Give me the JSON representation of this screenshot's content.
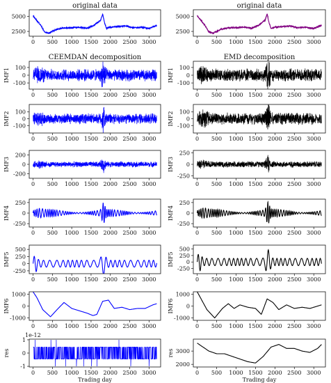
{
  "chart_data": [
    {
      "type": "line",
      "panel": "orig-left",
      "title": "original data",
      "ylabel": "",
      "xlim": [
        -100,
        3300
      ],
      "ylim": [
        1700,
        6100
      ],
      "yticks": [
        2500,
        5000
      ],
      "color": "#0000ff",
      "signal": {
        "kind": "price",
        "amp": 1
      },
      "x": [
        0,
        100,
        200,
        300,
        400,
        600,
        800,
        1000,
        1200,
        1400,
        1600,
        1750,
        1800,
        1850,
        1900,
        2000,
        2200,
        2400,
        2600,
        2800,
        3000,
        3200
      ],
      "y": [
        5100,
        4300,
        3500,
        2400,
        2200,
        2800,
        3100,
        3100,
        3200,
        3000,
        3600,
        4400,
        5400,
        3900,
        3000,
        3200,
        3300,
        3400,
        3100,
        3200,
        3000,
        3500
      ]
    },
    {
      "type": "line",
      "panel": "orig-right",
      "title": "original data",
      "ylabel": "",
      "xlim": [
        -100,
        3300
      ],
      "ylim": [
        1700,
        6100
      ],
      "yticks": [
        2500,
        5000
      ],
      "color": "#800080",
      "signal": {
        "kind": "price",
        "amp": 1
      },
      "x": [
        0,
        100,
        200,
        300,
        400,
        600,
        800,
        1000,
        1200,
        1400,
        1600,
        1750,
        1800,
        1850,
        1900,
        2000,
        2200,
        2400,
        2600,
        2800,
        3000,
        3200
      ],
      "y": [
        5100,
        4300,
        3500,
        2400,
        2200,
        2800,
        3100,
        3100,
        3200,
        3000,
        3600,
        4400,
        5400,
        3900,
        3000,
        3200,
        3300,
        3400,
        3100,
        3200,
        3000,
        3500
      ]
    },
    {
      "type": "line",
      "panel": "imf1-left",
      "title": "CEEMDAN decomposition",
      "ylabel": "IMF1",
      "ylim": [
        -180,
        180
      ],
      "yticks": [
        -100,
        0,
        100
      ],
      "color": "#0000ff",
      "signal": {
        "kind": "noise",
        "amp": 70
      }
    },
    {
      "type": "line",
      "panel": "imf1-right",
      "title": "EMD decomposition",
      "ylabel": "IMF1",
      "ylim": [
        -180,
        180
      ],
      "yticks": [
        -100,
        0,
        100
      ],
      "color": "#000000",
      "signal": {
        "kind": "noise",
        "amp": 75
      }
    },
    {
      "type": "line",
      "panel": "imf2-left",
      "title": "",
      "ylabel": "IMF2",
      "ylim": [
        -210,
        210
      ],
      "yticks": [
        -100,
        0,
        100
      ],
      "color": "#0000ff",
      "signal": {
        "kind": "noise",
        "amp": 70
      }
    },
    {
      "type": "line",
      "panel": "imf2-right",
      "title": "",
      "ylabel": "IMF2",
      "ylim": [
        -210,
        210
      ],
      "yticks": [
        -100,
        0,
        100
      ],
      "color": "#000000",
      "signal": {
        "kind": "noise",
        "amp": 80
      }
    },
    {
      "type": "line",
      "panel": "imf3-left",
      "title": "",
      "ylabel": "IMF3",
      "ylim": [
        -300,
        300
      ],
      "yticks": [
        -200,
        0,
        200
      ],
      "color": "#0000ff",
      "signal": {
        "kind": "noise",
        "amp": 55
      }
    },
    {
      "type": "line",
      "panel": "imf3-right",
      "title": "",
      "ylabel": "IMF3",
      "ylim": [
        -300,
        300
      ],
      "yticks": [
        -250,
        0,
        250
      ],
      "color": "#000000",
      "signal": {
        "kind": "noise",
        "amp": 60
      }
    },
    {
      "type": "line",
      "panel": "imf4-left",
      "title": "",
      "ylabel": "IMF4",
      "ylim": [
        -330,
        330
      ],
      "yticks": [
        -250,
        0,
        250
      ],
      "color": "#0000ff",
      "signal": {
        "kind": "wave",
        "amp": 70,
        "freq": 0.11
      }
    },
    {
      "type": "line",
      "panel": "imf4-right",
      "title": "",
      "ylabel": "IMF4",
      "ylim": [
        -330,
        330
      ],
      "yticks": [
        -250,
        0,
        250
      ],
      "color": "#000000",
      "signal": {
        "kind": "wave",
        "amp": 75,
        "freq": 0.12
      }
    },
    {
      "type": "line",
      "panel": "imf5-left",
      "title": "",
      "ylabel": "IMF5",
      "ylim": [
        -350,
        650
      ],
      "yticks": [
        -250,
        0,
        250,
        500
      ],
      "color": "#0000ff",
      "signal": {
        "kind": "slow",
        "amp": 120,
        "freq": 0.045
      }
    },
    {
      "type": "line",
      "panel": "imf5-right",
      "title": "",
      "ylabel": "IMF5",
      "ylim": [
        -450,
        650
      ],
      "yticks": [
        -250,
        0,
        250,
        500
      ],
      "color": "#000000",
      "signal": {
        "kind": "slow",
        "amp": 140,
        "freq": 0.05
      }
    },
    {
      "type": "line",
      "panel": "imf6-left",
      "title": "",
      "ylabel": "IMF6",
      "ylim": [
        -1200,
        1200
      ],
      "yticks": [
        -1000,
        0,
        1000
      ],
      "color": "#0000ff",
      "x": [
        0,
        100,
        250,
        450,
        650,
        800,
        1000,
        1200,
        1400,
        1550,
        1650,
        1800,
        1950,
        2100,
        2300,
        2500,
        2700,
        2900,
        3100,
        3200
      ],
      "y": [
        1200,
        700,
        -300,
        -900,
        -200,
        300,
        -200,
        -400,
        -600,
        -800,
        -700,
        400,
        500,
        -200,
        -100,
        -300,
        -200,
        -200,
        100,
        200
      ]
    },
    {
      "type": "line",
      "panel": "imf6-right",
      "title": "",
      "ylabel": "IMF6",
      "ylim": [
        -1200,
        1200
      ],
      "yticks": [
        -1000,
        0,
        1000
      ],
      "color": "#000000",
      "x": [
        0,
        100,
        250,
        450,
        650,
        800,
        950,
        1100,
        1300,
        1500,
        1650,
        1800,
        1950,
        2100,
        2300,
        2500,
        2700,
        2900,
        3100,
        3200
      ],
      "y": [
        1200,
        600,
        -300,
        -1000,
        -200,
        200,
        -200,
        100,
        -100,
        -200,
        -700,
        600,
        300,
        -300,
        100,
        -200,
        -100,
        -200,
        0,
        100
      ]
    },
    {
      "type": "line",
      "panel": "res-left",
      "title": "",
      "ylabel": "res",
      "xlabel": "Trading day",
      "offset_text": "1e-12",
      "ylim": [
        -1.05,
        1.05
      ],
      "yticks": [
        -1,
        0,
        1
      ],
      "color": "#0000ff",
      "signal": {
        "kind": "binary",
        "amp": 0.45
      }
    },
    {
      "type": "line",
      "panel": "res-right",
      "title": "",
      "ylabel": "res",
      "xlabel": "Trading day",
      "ylim": [
        1800,
        3900
      ],
      "yticks": [
        2000,
        3000
      ],
      "color": "#000000",
      "x": [
        0,
        150,
        300,
        500,
        700,
        900,
        1100,
        1300,
        1500,
        1700,
        1900,
        2100,
        2300,
        2500,
        2700,
        2900,
        3100,
        3200
      ],
      "y": [
        3600,
        3300,
        3000,
        2800,
        2800,
        2600,
        2400,
        2200,
        2100,
        2600,
        3300,
        3500,
        3200,
        3200,
        3000,
        2900,
        3200,
        3500
      ]
    }
  ],
  "xticks": [
    0,
    500,
    1000,
    1500,
    2000,
    2500,
    3000
  ],
  "xlim": [
    -100,
    3300
  ]
}
